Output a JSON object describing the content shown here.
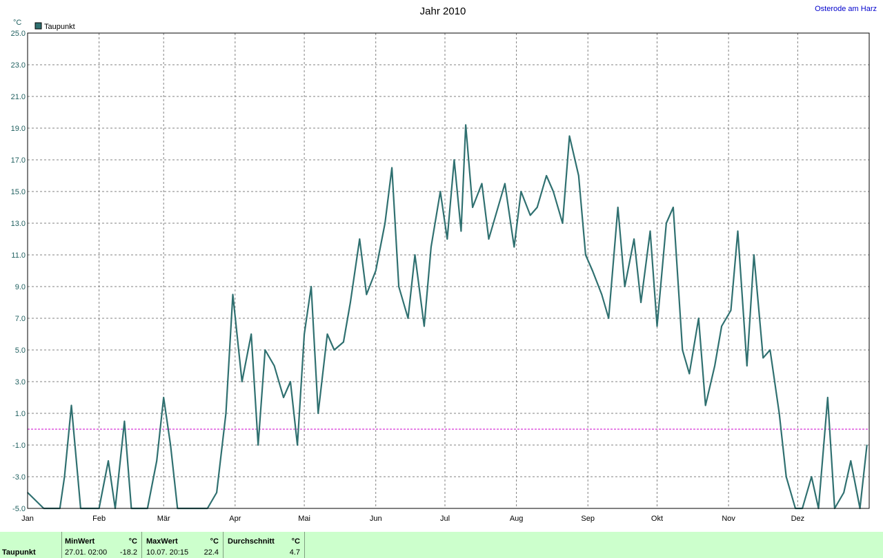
{
  "chart_data": {
    "type": "line",
    "title": "Jahr 2010",
    "location": "Osterode am Harz",
    "y_unit": "°C",
    "ylim": [
      -5.0,
      25.0
    ],
    "y_ticks": [
      "25.0",
      "23.0",
      "21.0",
      "19.0",
      "17.0",
      "15.0",
      "13.0",
      "11.0",
      "9.0",
      "7.0",
      "5.0",
      "3.0",
      "1.0",
      "-1.0",
      "-3.0",
      "-5.0"
    ],
    "x_ticks": [
      "Jan",
      "Feb",
      "Mär",
      "Apr",
      "Mai",
      "Jun",
      "Jul",
      "Aug",
      "Sep",
      "Okt",
      "Nov",
      "Dez"
    ],
    "grid": true,
    "legend_position": "top-left",
    "reference_line": 0,
    "series": [
      {
        "name": "Taupunkt",
        "color": "#2f7070",
        "x": [
          "01.01",
          "08.01",
          "15.01",
          "17.01",
          "20.01",
          "24.01",
          "27.01",
          "01.02",
          "05.02",
          "08.02",
          "12.02",
          "15.02",
          "18.02",
          "22.02",
          "26.02",
          "01.03",
          "04.03",
          "07.03",
          "10.03",
          "13.03",
          "17.03",
          "20.03",
          "24.03",
          "28.03",
          "31.03",
          "04.04",
          "08.04",
          "11.04",
          "14.04",
          "18.04",
          "22.04",
          "25.04",
          "28.04",
          "01.05",
          "04.05",
          "07.05",
          "11.05",
          "14.05",
          "18.05",
          "21.05",
          "25.05",
          "28.05",
          "01.06",
          "05.06",
          "08.06",
          "11.06",
          "15.06",
          "18.06",
          "22.06",
          "25.06",
          "29.06",
          "02.07",
          "05.07",
          "08.07",
          "10.07",
          "13.07",
          "17.07",
          "20.07",
          "24.07",
          "27.07",
          "31.07",
          "03.08",
          "07.08",
          "10.08",
          "14.08",
          "17.08",
          "21.08",
          "24.08",
          "28.08",
          "31.08",
          "03.09",
          "07.09",
          "10.09",
          "14.09",
          "17.09",
          "21.09",
          "24.09",
          "28.09",
          "01.10",
          "05.10",
          "08.10",
          "12.10",
          "15.10",
          "19.10",
          "22.10",
          "26.10",
          "29.10",
          "02.11",
          "05.11",
          "09.11",
          "12.11",
          "16.11",
          "19.11",
          "23.11",
          "26.11",
          "30.11",
          "03.12",
          "07.12",
          "10.12",
          "14.12",
          "17.12",
          "21.12",
          "24.12",
          "28.12",
          "31.12"
        ],
        "values": [
          -4.0,
          -5.0,
          -5.0,
          -3.0,
          1.5,
          -5.0,
          -5.0,
          -5.0,
          -2.0,
          -5.0,
          0.5,
          -5.0,
          -5.0,
          -5.0,
          -2.0,
          2.0,
          -1.0,
          -5.0,
          -5.0,
          -5.0,
          -5.0,
          -5.0,
          -4.0,
          1.0,
          8.5,
          3.0,
          6.0,
          -1.0,
          5.0,
          4.0,
          2.0,
          3.0,
          -1.0,
          6.0,
          9.0,
          1.0,
          6.0,
          5.0,
          5.5,
          8.0,
          12.0,
          8.5,
          10.0,
          13.0,
          16.5,
          9.0,
          7.0,
          11.0,
          6.5,
          11.5,
          15.0,
          12.0,
          17.0,
          12.5,
          19.2,
          14.0,
          15.5,
          12.0,
          14.0,
          15.5,
          11.5,
          15.0,
          13.5,
          14.0,
          16.0,
          15.0,
          13.0,
          18.5,
          16.0,
          11.0,
          10.0,
          8.5,
          7.0,
          14.0,
          9.0,
          12.0,
          8.0,
          12.5,
          6.5,
          13.0,
          14.0,
          5.0,
          3.5,
          7.0,
          1.5,
          4.0,
          6.5,
          7.5,
          12.5,
          4.0,
          11.0,
          4.5,
          5.0,
          1.0,
          -3.0,
          -5.0,
          -5.0,
          -3.0,
          -5.0,
          2.0,
          -5.0,
          -4.0,
          -2.0,
          -5.0,
          -1.0
        ]
      }
    ]
  },
  "stats": {
    "row_label": "Taupunkt",
    "min_label": "MinWert",
    "max_label": "MaxWert",
    "avg_label": "Durchschnitt",
    "unit": "°C",
    "min_time": "27.01.  02:00",
    "min_value": "-18.2",
    "max_time": "10.07.  20:15",
    "max_value": "22.4",
    "avg_value": "4.7"
  }
}
